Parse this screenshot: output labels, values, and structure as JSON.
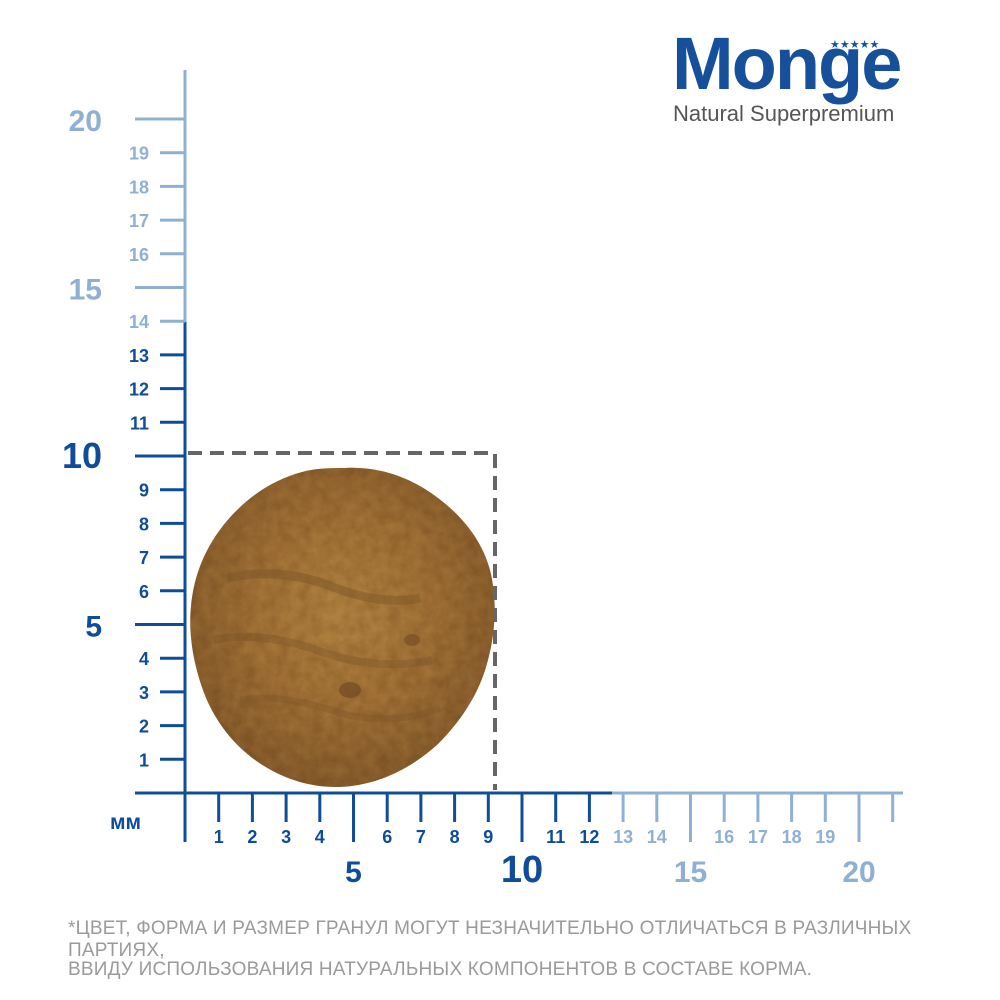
{
  "brand": {
    "name": "Monge",
    "tagline": "Natural Superpremium"
  },
  "ruler": {
    "unit_label": "мм",
    "x_axis": {
      "major_labels": [
        "5",
        "10",
        "15",
        "20"
      ],
      "minor_labels": [
        "1",
        "2",
        "3",
        "4",
        "6",
        "7",
        "8",
        "9",
        "11",
        "12",
        "13",
        "14",
        "16",
        "17",
        "18",
        "19"
      ]
    },
    "y_axis": {
      "major_labels": [
        "5",
        "10",
        "15",
        "20"
      ],
      "minor_labels": [
        "1",
        "2",
        "3",
        "4",
        "6",
        "7",
        "8",
        "9",
        "11",
        "12",
        "13",
        "14",
        "16",
        "17",
        "18",
        "19"
      ]
    }
  },
  "kibble": {
    "width_mm": 9.5,
    "height_mm": 9.5
  },
  "disclaimer": {
    "line1": "*ЦВЕТ, ФОРМА И РАЗМЕР ГРАНУЛ МОГУТ НЕЗНАЧИТЕЛЬНО ОТЛИЧАТЬСЯ В РАЗЛИЧНЫХ ПАРТИЯХ,",
    "line2": "ВВИДУ ИСПОЛЬЗОВАНИЯ НАТУРАЛЬНЫХ КОМПОНЕНТОВ В СОСТАВЕ КОРМА."
  },
  "colors": {
    "dark_blue": "#0f4c9a",
    "light_blue": "#8fb0d4",
    "kibble": "#b07a35",
    "frame": "#666666"
  }
}
